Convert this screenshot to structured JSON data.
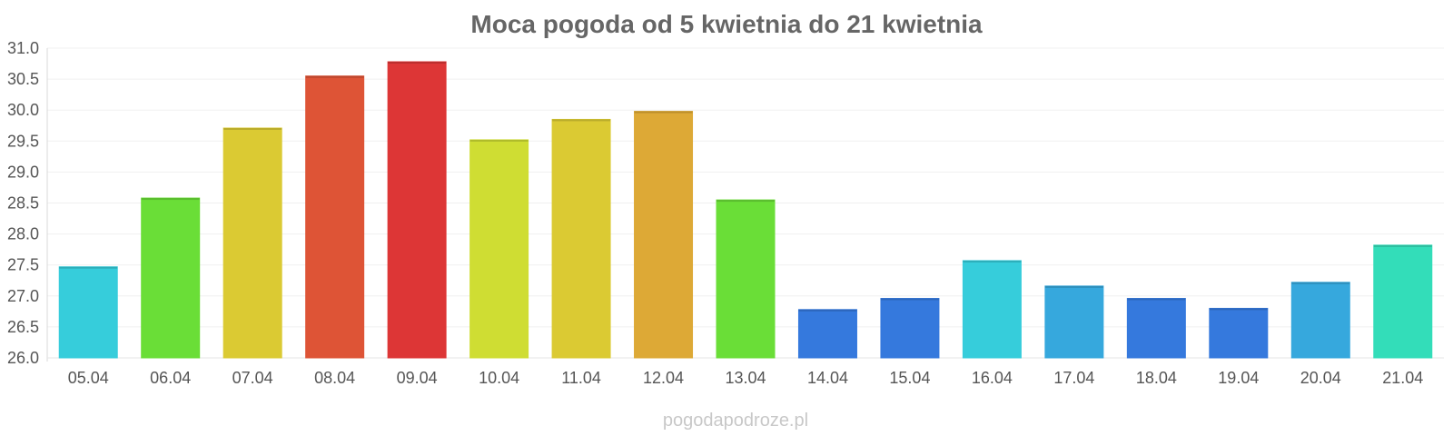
{
  "chart_data": {
    "type": "bar",
    "title": "Moca pogoda od 5 kwietnia do 21 kwietnia",
    "xlabel": "",
    "ylabel": "",
    "ylim": [
      26.0,
      31.0
    ],
    "yticks": [
      "26.0",
      "26.5",
      "27.0",
      "27.5",
      "28.0",
      "28.5",
      "29.0",
      "29.5",
      "30.0",
      "30.5",
      "31.0"
    ],
    "grid": true,
    "categories": [
      "05.04",
      "06.04",
      "07.04",
      "08.04",
      "09.04",
      "10.04",
      "11.04",
      "12.04",
      "13.04",
      "14.04",
      "15.04",
      "16.04",
      "17.04",
      "18.04",
      "19.04",
      "20.04",
      "21.04"
    ],
    "values": [
      27.47,
      28.58,
      29.71,
      30.55,
      30.78,
      29.52,
      29.85,
      29.98,
      28.55,
      26.78,
      26.96,
      27.57,
      27.16,
      26.96,
      26.8,
      27.22,
      27.82
    ],
    "colors": [
      "#36cddb",
      "#6ade37",
      "#dbca33",
      "#de5436",
      "#dd3636",
      "#cfdd33",
      "#dbca33",
      "#dda936",
      "#6ade37",
      "#3579dd",
      "#3579dd",
      "#36cddb",
      "#36a8dd",
      "#3579dd",
      "#3579dd",
      "#36a8dd",
      "#33ddb9"
    ]
  },
  "watermark": "pogodapodroze.pl"
}
